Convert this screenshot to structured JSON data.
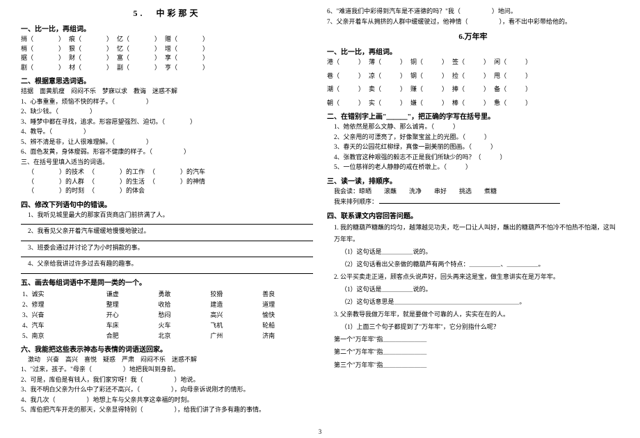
{
  "left": {
    "mainTitle": "5.　中彩那天",
    "sec1": "一、比一比，再组词。",
    "s1rows": [
      [
        "捎（",
        "）",
        "痕（",
        "）",
        "亿（",
        "）",
        "赠（",
        "）"
      ],
      [
        "梢（",
        "）",
        "狠（",
        "）",
        "忆（",
        "）",
        "增（",
        "）"
      ],
      [
        "据（",
        "）",
        "财（",
        "）",
        "富（",
        "）",
        "享（",
        "）"
      ],
      [
        "剧（",
        "）",
        "材（",
        "）",
        "副（",
        "）",
        "亨（",
        "）"
      ]
    ],
    "sec2": "二、根据意思选词语。",
    "s2words": "拮据　面黄肌瘦　闷闷不乐　梦寐以求　教诲　迷惑不解",
    "s2items": [
      "1、心事重重，烦恼不快的样子。（　　　　　）",
      "2、缺少钱。（　　　　　）",
      "3、睡梦中都在寻找，追求。形容愿望强烈、迫切。（　　　　）",
      "4、教导。（　　　　　）",
      "5、辨不清是非，让人很难理解。（　　　　　）",
      "6、面色发黄，身体瘦弱。形容不健康的样子。（　　　　　）"
    ],
    "sec3": "三、在括号里填入适当的词语。",
    "s3rows": [
      [
        "（　　　　）的技术",
        "（　　　　）的工作",
        "（　　　　）的汽车"
      ],
      [
        "（　　　　）的人群",
        "（　　　　）的生活",
        "（　　　　）的神情"
      ],
      [
        "（　　　　）的时刻",
        "（　　　　）的体会",
        ""
      ]
    ],
    "sec4": "四、修改下列语句中的错误。",
    "s4items": [
      "1、我听见城里最大的那家百货商店门前挤满了人。",
      "2、我看见父亲开着汽车缓缓地慢慢地驶过。",
      "3、班委会通过并讨论了为小时捐款的事。",
      "4、父亲给我讲过许多过去有趣的趣事。"
    ],
    "sec5": "五、画去每组词语中不是同一类的一个。",
    "s5rows": [
      [
        "1、诚实",
        "谦虚",
        "勇敢",
        "狡猾",
        "善良"
      ],
      [
        "2、修理",
        "整理",
        "收拾",
        "建造",
        "道理"
      ],
      [
        "3、兴奋",
        "开心",
        "愁闷",
        "高兴",
        "愉快"
      ],
      [
        "4、汽车",
        "车床",
        "火车",
        "飞机",
        "轮船"
      ],
      [
        "5、南京",
        "合肥",
        "北京",
        "广州",
        "济南"
      ]
    ],
    "sec6": "六、我能把这些表示神态与表情的词语送回家。",
    "s6words": "激动　兴奋　高兴　喜悦　疑惑　严肃　闷闷不乐　迷惑不解",
    "s6items": [
      "1、\"过来，孩子。\"母亲（　　　　　）地把我叫到身前。",
      "2、可是，库伯是有钱人，我们家穷呀！我（　　　　　）地说。",
      "3、我不明白父亲为什么中了彩还不高兴，（　　　　　），向母亲诉说刚才的情形。",
      "4、我几次（　　　　　）地想上车与父亲共享这幸福的时刻。",
      "5、库伯把汽车开走的那天，父亲显得特别（　　　　　），给我们讲了许多有趣的事情。"
    ]
  },
  "right": {
    "topitems": [
      "6、\"难道我们中彩得到汽车是不道德的吗？\"我（　　　　　）地问。",
      "7、父亲开着车从拥挤的人群中缓缓驶过，他神情（　　　　　），看不出中彩带给他的。"
    ],
    "mainTitle": "6.万年牢",
    "sec1": "一、比一比，再组词。",
    "s1rows": [
      [
        "港（",
        "）",
        "薄（",
        "）",
        "铜（",
        "）",
        "签（",
        "）",
        "闲（",
        "）"
      ],
      [
        "巷（",
        "）",
        "凉（",
        "）",
        "钢（",
        "）",
        "捡（",
        "）",
        "甩（",
        "）"
      ],
      [
        "潮（",
        "）",
        "卖（",
        "）",
        "赚（",
        "）",
        "捧（",
        "）",
        "备（",
        "）"
      ],
      [
        "朝（",
        "）",
        "实（",
        "）",
        "嫌（",
        "）",
        "棒（",
        "）",
        "惫（",
        "）"
      ]
    ],
    "sec2": "二、在错别字上画\"＿＿＿\"，把正确的字写在括号里。",
    "s2items": [
      "1、她依然是那么文静、那么诚肯。（　　　）",
      "2、父亲甩的可漂亮了，好像聚宝盆上的光圈。（　　　）",
      "3、春天的公园花红柳绿，真像一副美丽的图画。（　　　）",
      "4、张教官这种艰强的毅志不正是我们所缺少的吗？（　　　）",
      "5、一位慈祥的老人静静的戒在桥墩上。（　　　）"
    ],
    "sec3": "三、读一读，排顺序。",
    "s3words": "我会读：晾晒　　滚蘸　　洗净　　串好　　挑选　　煮糖",
    "s3line": "我来排列顺序：",
    "sec4": "四、联系课文内容回答问题。",
    "s4p1": "1. 我的糖葫芦糖蘸的均匀，越薄越见功夫，吃一口让人叫好，蘸出的糖葫芦不怕冷不怕热不怕潮，这叫万年牢。",
    "s4p1a": "（1）这句话是＿＿＿＿＿说的。",
    "s4p1b": "（2）这句话看出父亲做的糖葫芦有两个特点：＿＿＿＿＿、＿＿＿＿＿。",
    "s4p2": "2. 公平买卖走正道，顾客点头说声好，回头再来这是宝，做生意讲实在是万年牢。",
    "s4p2a": "（1）这句话是＿＿＿＿＿说的。",
    "s4p2b": "（2）这句话意思是＿＿＿＿＿＿＿＿＿＿＿＿＿＿＿＿＿＿＿＿。",
    "s4p3": "3. 父亲教导我做万年牢，就是要做个可靠的人，实实在在的人。",
    "s4p3q": "（1）上面三个句子都提到了\"万年牢\"，它分别指什么呢？",
    "s4p3a": "第一个\"万年牢\"指＿＿＿＿＿＿＿",
    "s4p3b": "第二个\"万年牢\"指＿＿＿＿＿＿＿",
    "s4p3c": "第三个\"万年牢\"指＿＿＿＿＿＿＿"
  },
  "pageNum": "3"
}
